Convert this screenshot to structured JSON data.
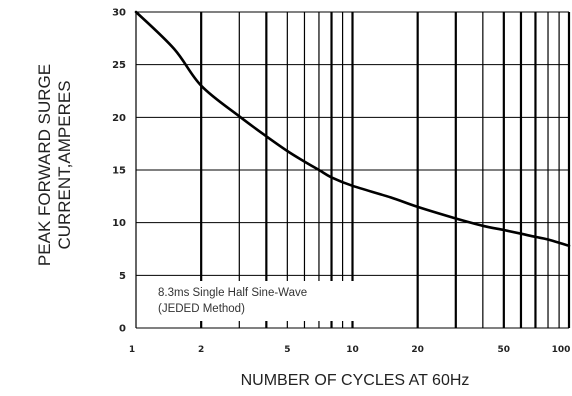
{
  "chart_data": {
    "type": "line",
    "ylabel_lines": [
      "PEAK FORWARD SURGE",
      "CURRENT,AMPERES"
    ],
    "xlabel": "NUMBER  OF  CYCLES AT 60Hz",
    "xscale": "log",
    "xlim": [
      1,
      100
    ],
    "ylim": [
      0,
      30
    ],
    "x_ticks": [
      1,
      2,
      5,
      10,
      20,
      50,
      100
    ],
    "x_tick_labels": [
      "1",
      "2",
      "5",
      "10",
      "20",
      "50",
      "100"
    ],
    "y_ticks": [
      0,
      5,
      10,
      15,
      20,
      25,
      30
    ],
    "y_tick_labels": [
      "0",
      "5",
      "10",
      "15",
      "20",
      "25",
      "30"
    ],
    "grid": true,
    "vertical_gridlines": [
      1,
      2,
      3,
      4,
      5,
      6,
      7,
      8,
      9,
      10,
      20,
      30,
      40,
      50,
      60,
      70,
      80,
      90,
      100
    ],
    "horizontal_gridlines": [
      0,
      5,
      10,
      15,
      20,
      25,
      30
    ],
    "series": [
      {
        "x": [
          1,
          1.5,
          2,
          3,
          4,
          5,
          6,
          7,
          8,
          10,
          15,
          20,
          30,
          40,
          50,
          60,
          70,
          80,
          100
        ],
        "y": [
          30,
          26.5,
          23,
          20.1,
          18.2,
          16.8,
          15.8,
          15,
          14.3,
          13.5,
          12.4,
          11.5,
          10.4,
          9.7,
          9.3,
          8.95,
          8.65,
          8.4,
          7.8
        ],
        "color": "#000000"
      }
    ],
    "annotations": [
      "8.3ms Single Half Sine-Wave",
      "(JEDED Method)"
    ]
  }
}
